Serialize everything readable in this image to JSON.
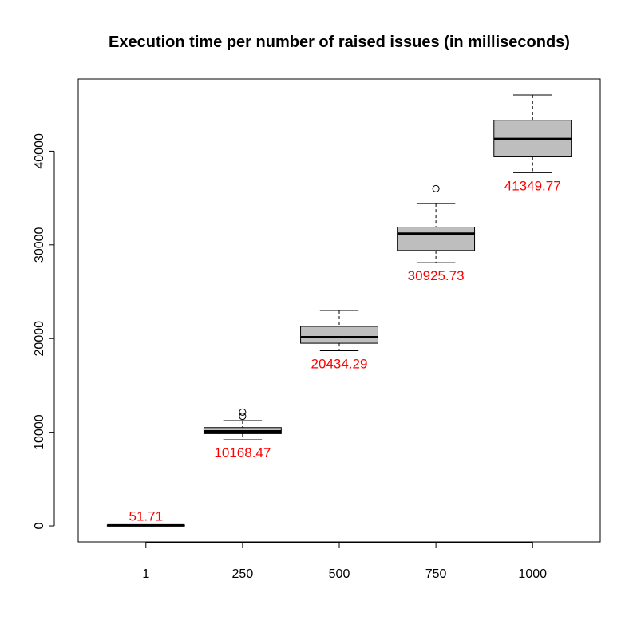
{
  "chart_data": {
    "type": "boxplot",
    "title": "Execution time per number of raised issues (in milliseconds)",
    "xlabel": "",
    "ylabel": "",
    "categories": [
      "1",
      "250",
      "500",
      "750",
      "1000"
    ],
    "boxes": [
      {
        "category": "1",
        "whisker_low": 0,
        "q1": 0,
        "median": 52,
        "q3": 80,
        "whisker_high": 120,
        "outliers": [],
        "label": "51.71"
      },
      {
        "category": "250",
        "whisker_low": 9200,
        "q1": 9850,
        "median": 10100,
        "q3": 10500,
        "whisker_high": 11250,
        "outliers": [
          11700,
          12150
        ],
        "label": "10168.47"
      },
      {
        "category": "500",
        "whisker_low": 18700,
        "q1": 19500,
        "median": 20150,
        "q3": 21300,
        "whisker_high": 23000,
        "outliers": [],
        "label": "20434.29"
      },
      {
        "category": "750",
        "whisker_low": 28100,
        "q1": 29400,
        "median": 31200,
        "q3": 31900,
        "whisker_high": 34400,
        "outliers": [
          36000
        ],
        "label": "30925.73"
      },
      {
        "category": "1000",
        "whisker_low": 37700,
        "q1": 39400,
        "median": 41300,
        "q3": 43300,
        "whisker_high": 46000,
        "outliers": [],
        "label": "41349.77"
      }
    ],
    "y_ticks": [
      0,
      10000,
      20000,
      30000,
      40000
    ],
    "ylim": [
      -1700,
      47700
    ],
    "grid": false,
    "legend": "none",
    "box_fill": "#bebebe",
    "label_color": "#ff0000"
  }
}
